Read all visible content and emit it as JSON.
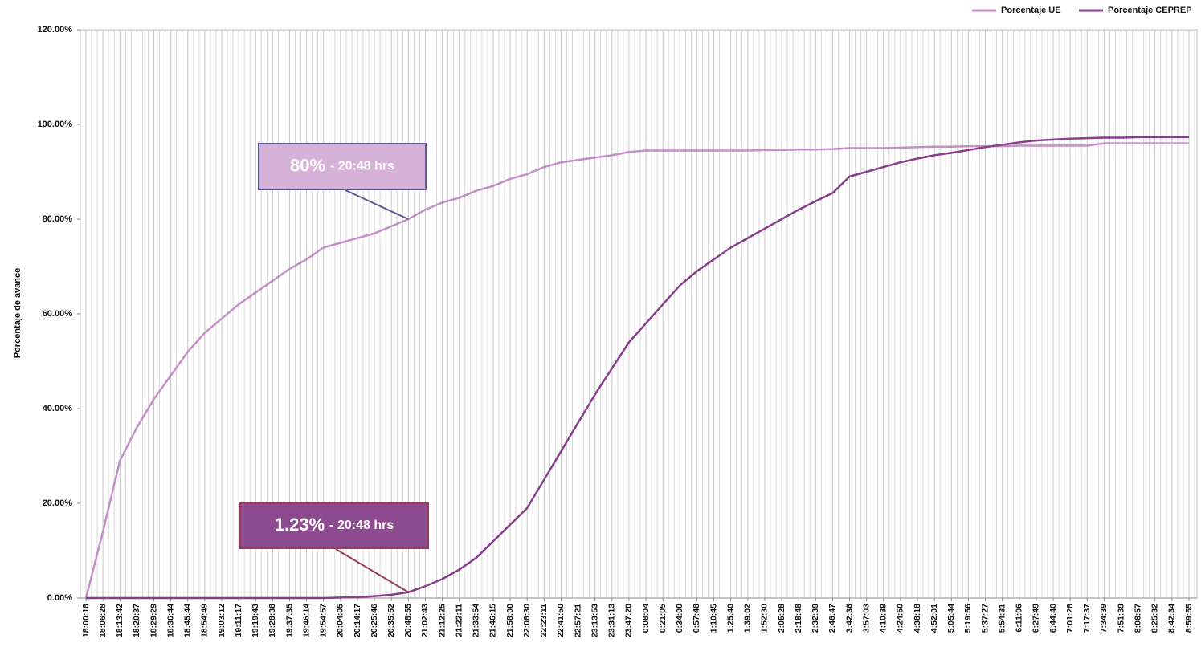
{
  "chart_data": {
    "type": "line",
    "y_axis_label": "Porcentaje de avance",
    "categories": [
      "18:00:18",
      "18:06:28",
      "18:13:42",
      "18:20:37",
      "18:29:29",
      "18:36:44",
      "18:45:44",
      "18:54:49",
      "19:03:12",
      "19:11:17",
      "19:19:43",
      "19:28:38",
      "19:37:35",
      "19:46:14",
      "19:54:57",
      "20:04:05",
      "20:14:17",
      "20:25:46",
      "20:35:52",
      "20:48:55",
      "21:02:43",
      "21:12:25",
      "21:22:11",
      "21:33:54",
      "21:46:15",
      "21:58:00",
      "22:08:30",
      "22:23:11",
      "22:41:50",
      "22:57:21",
      "23:13:53",
      "23:31:13",
      "23:47:20",
      "0:08:04",
      "0:21:05",
      "0:34:00",
      "0:57:48",
      "1:10:45",
      "1:25:40",
      "1:39:02",
      "1:52:30",
      "2:05:28",
      "2:18:48",
      "2:32:39",
      "2:46:47",
      "3:42:36",
      "3:57:03",
      "4:10:39",
      "4:24:50",
      "4:38:18",
      "4:52:01",
      "5:05:44",
      "5:19:56",
      "5:37:27",
      "5:54:31",
      "6:11:06",
      "6:27:49",
      "6:44:40",
      "7:01:28",
      "7:17:37",
      "7:34:39",
      "7:51:39",
      "8:08:57",
      "8:25:32",
      "8:42:34",
      "8:59:55"
    ],
    "series": [
      {
        "name": "Porcentaje UE",
        "color": "#c48ec6",
        "values": [
          0,
          14,
          29,
          36,
          42,
          47,
          52,
          56,
          59,
          62,
          64.5,
          67,
          69.5,
          71.5,
          74,
          75,
          76,
          77,
          78.5,
          80,
          82,
          83.5,
          84.5,
          86,
          87,
          88.5,
          89.5,
          91,
          92,
          92.5,
          93,
          93.5,
          94.2,
          94.5,
          94.5,
          94.5,
          94.5,
          94.5,
          94.5,
          94.5,
          94.6,
          94.6,
          94.7,
          94.7,
          94.8,
          95,
          95,
          95,
          95.1,
          95.2,
          95.3,
          95.3,
          95.4,
          95.4,
          95.4,
          95.5,
          95.5,
          95.5,
          95.5,
          95.5,
          96,
          96,
          96,
          96,
          96,
          96
        ]
      },
      {
        "name": "Porcentaje CEPREP",
        "color": "#8a3d8c",
        "values": [
          0,
          0,
          0,
          0,
          0,
          0,
          0,
          0,
          0,
          0,
          0,
          0,
          0,
          0,
          0,
          0.1,
          0.2,
          0.4,
          0.7,
          1.23,
          2.5,
          4,
          6,
          8.5,
          12,
          15.5,
          19,
          25,
          31,
          37,
          43,
          48.5,
          54,
          58,
          62,
          66,
          69,
          71.5,
          74,
          76,
          78,
          80,
          82,
          83.8,
          85.5,
          89,
          90,
          91,
          92,
          92.8,
          93.5,
          94,
          94.6,
          95.2,
          95.7,
          96.2,
          96.6,
          96.8,
          97,
          97.1,
          97.2,
          97.2,
          97.3,
          97.3,
          97.3,
          97.3
        ]
      }
    ],
    "ylim": [
      0,
      120
    ],
    "yticks": [
      {
        "value": 0,
        "label": "0.00%"
      },
      {
        "value": 20,
        "label": "20.00%"
      },
      {
        "value": 40,
        "label": "40.00%"
      },
      {
        "value": 60,
        "label": "60.00%"
      },
      {
        "value": 80,
        "label": "80.00%"
      },
      {
        "value": 100,
        "label": "100.00%"
      },
      {
        "value": 120,
        "label": "120.00%"
      }
    ],
    "grid": true,
    "legend": "top-right",
    "annotations": [
      {
        "text": "80%",
        "detail": "- 20:48 hrs",
        "series": 0,
        "point": 19
      },
      {
        "text": "1.23%",
        "detail": "- 20:48 hrs",
        "series": 1,
        "point": 19
      }
    ]
  }
}
